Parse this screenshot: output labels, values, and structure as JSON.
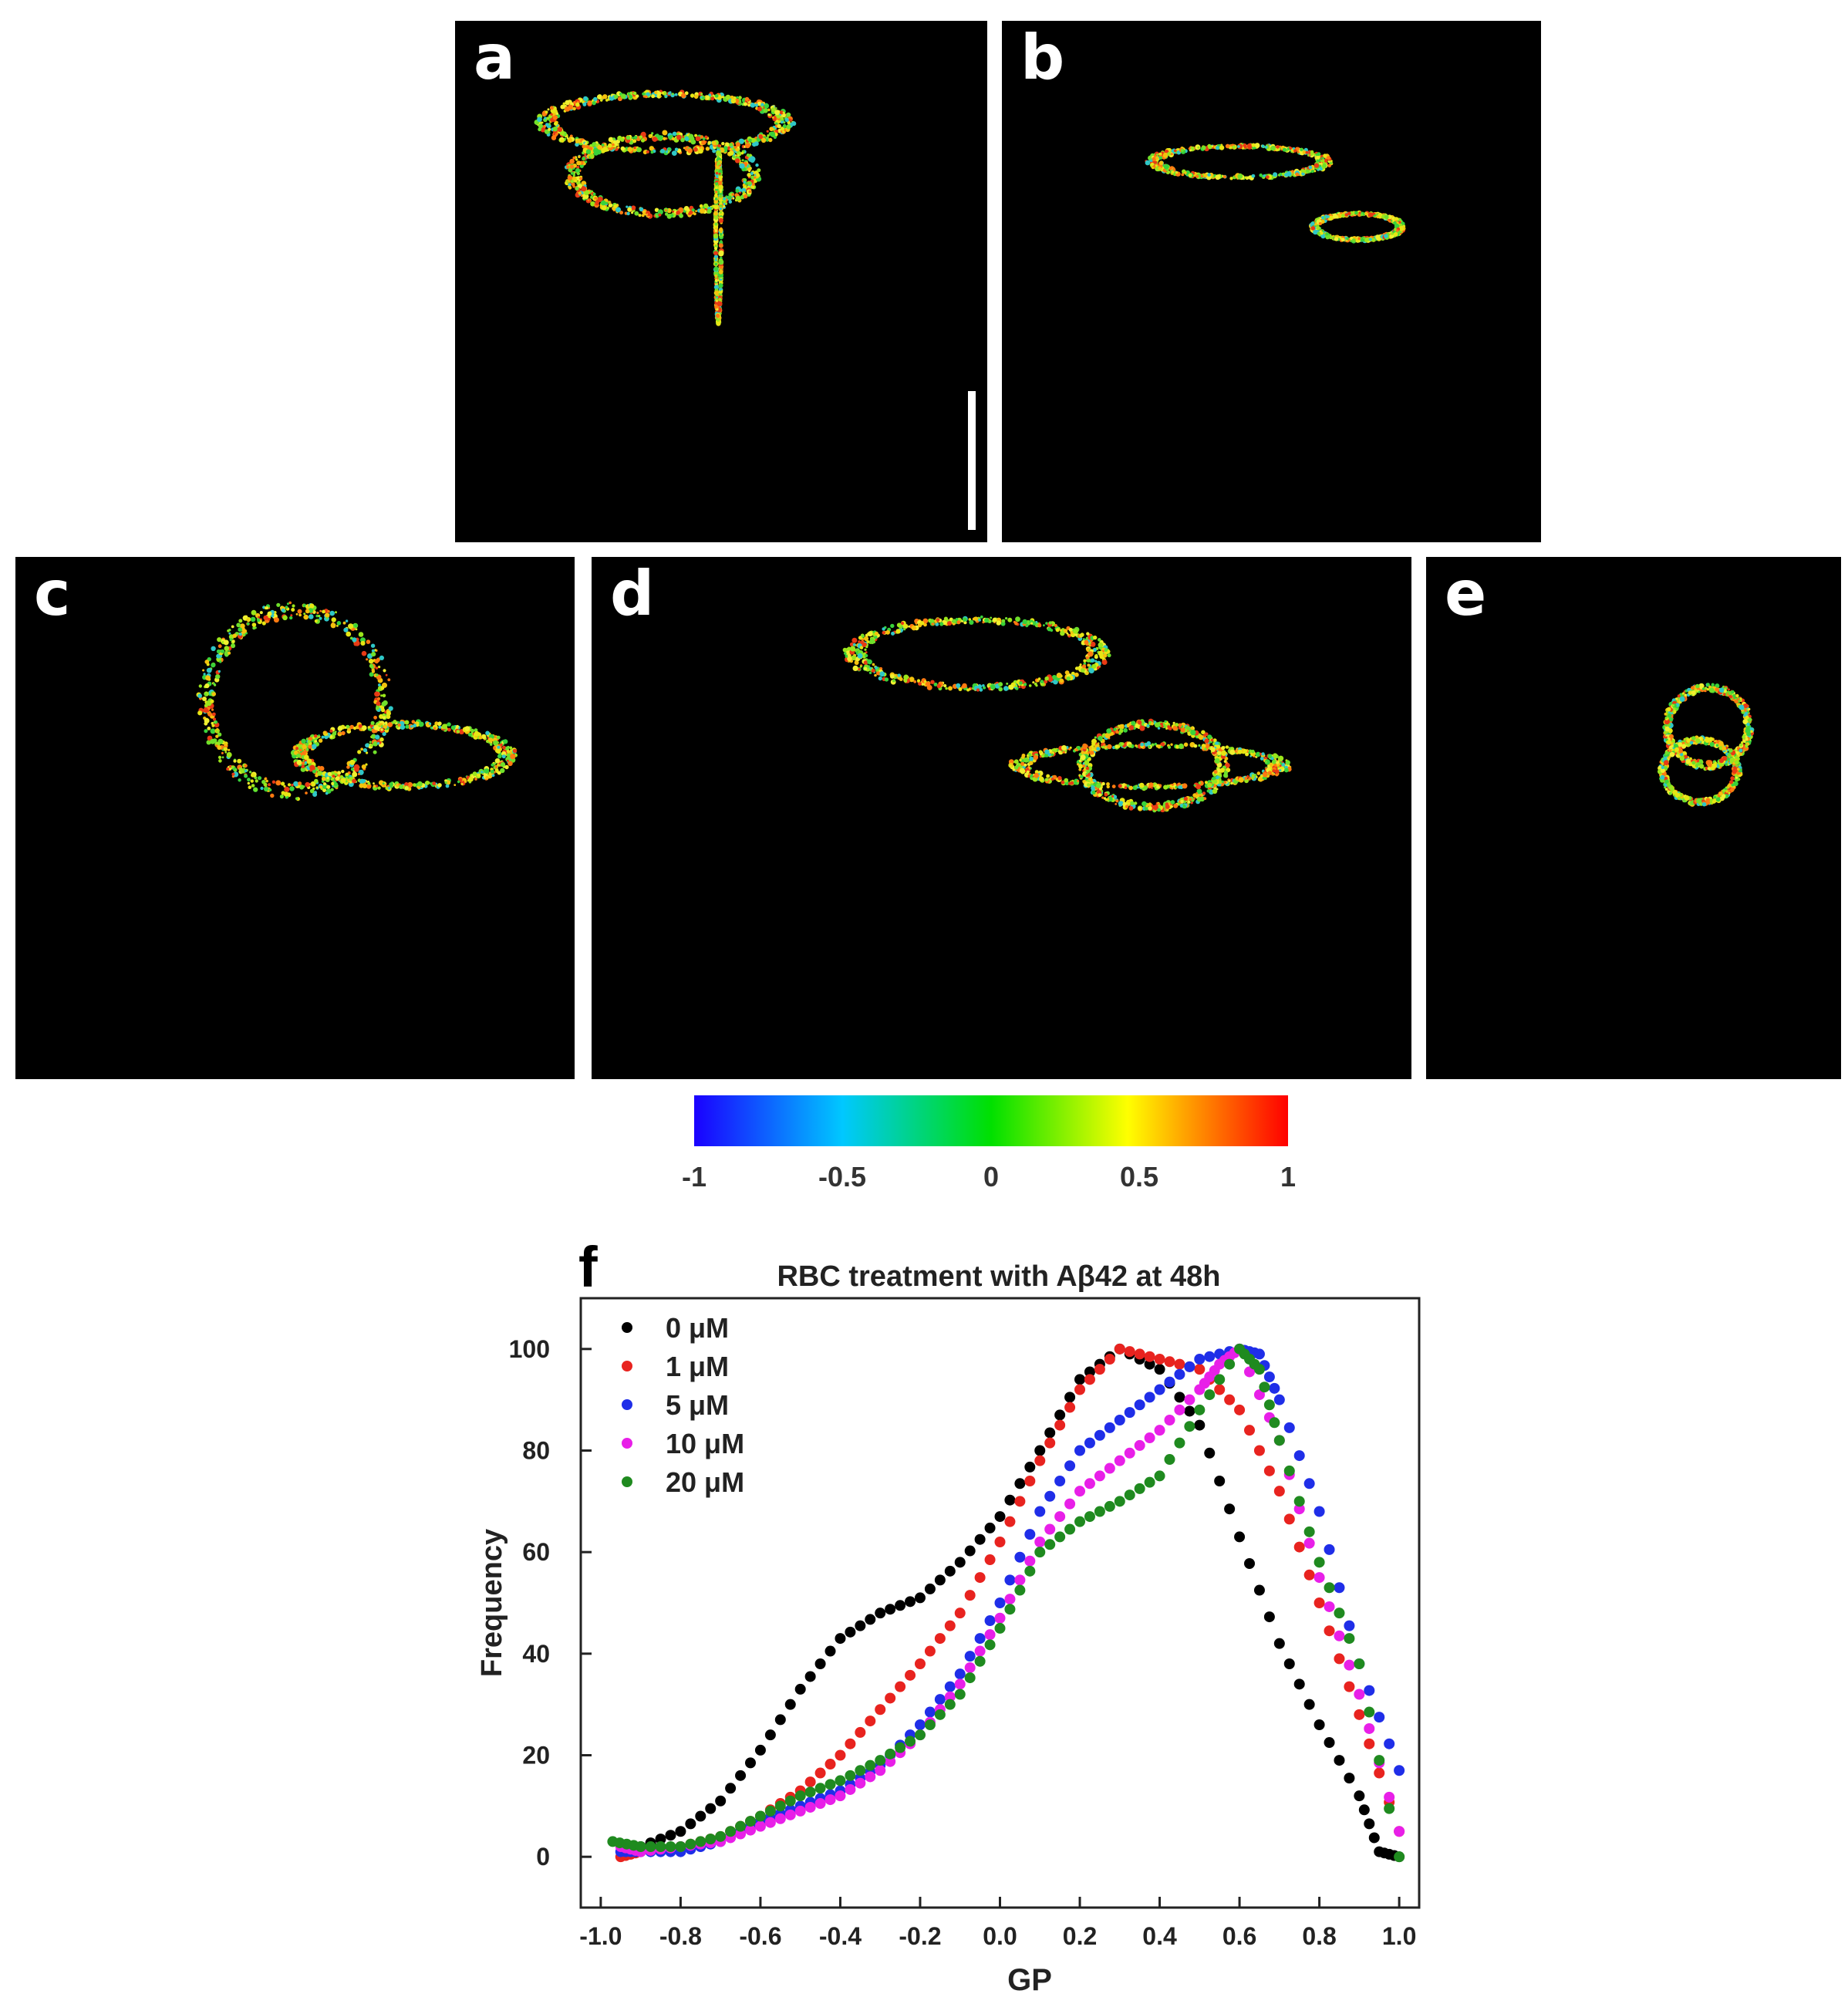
{
  "panels": [
    {
      "id": "a",
      "label": "a"
    },
    {
      "id": "b",
      "label": "b"
    },
    {
      "id": "c",
      "label": "c"
    },
    {
      "id": "d",
      "label": "d"
    },
    {
      "id": "e",
      "label": "e"
    }
  ],
  "colorbar": {
    "ticks": [
      "-1",
      "-0.5",
      "0",
      "0.5",
      "1"
    ],
    "range": [
      -1,
      1
    ],
    "colors": [
      "#1a00ff",
      "#00c8ff",
      "#00e000",
      "#ffff00",
      "#ff8c00",
      "#ff0000"
    ]
  },
  "chart_data": {
    "type": "scatter",
    "panel_label": "f",
    "title": "RBC treatment with Aβ42 at 48h",
    "xlabel": "GP",
    "ylabel": "Frequency",
    "xlim": [
      -1.05,
      1.05
    ],
    "ylim": [
      -10,
      110
    ],
    "xticks": [
      -1.0,
      -0.8,
      -0.6,
      -0.4,
      -0.2,
      0.0,
      0.2,
      0.4,
      0.6,
      0.8,
      1.0
    ],
    "xtick_labels": [
      "-1.0",
      "-0.8",
      "-0.6",
      "-0.4",
      "-0.2",
      "0.0",
      "0.2",
      "0.4",
      "0.6",
      "0.8",
      "1.0"
    ],
    "yticks": [
      0,
      20,
      40,
      60,
      80,
      100
    ],
    "ytick_labels": [
      "0",
      "20",
      "40",
      "60",
      "80",
      "100"
    ],
    "legend_position": "top-left",
    "series": [
      {
        "name": "0 μM",
        "color": "#000000",
        "x": [
          -0.9,
          -0.8,
          -0.7,
          -0.6,
          -0.5,
          -0.4,
          -0.3,
          -0.2,
          -0.1,
          0.0,
          0.1,
          0.2,
          0.3,
          0.4,
          0.5,
          0.6,
          0.7,
          0.8,
          0.9,
          0.95,
          1.0
        ],
        "y": [
          2,
          5,
          11,
          21,
          33,
          43,
          48,
          51,
          58,
          67,
          80,
          94,
          100,
          96,
          85,
          63,
          42,
          26,
          12,
          1,
          0
        ]
      },
      {
        "name": "1 μM",
        "color": "#e8231f",
        "x": [
          -0.95,
          -0.9,
          -0.8,
          -0.7,
          -0.6,
          -0.5,
          -0.4,
          -0.3,
          -0.2,
          -0.1,
          0.0,
          0.1,
          0.2,
          0.3,
          0.4,
          0.5,
          0.6,
          0.7,
          0.8,
          0.9,
          1.0
        ],
        "y": [
          0,
          1,
          2,
          4,
          8,
          13,
          20,
          29,
          38,
          48,
          62,
          78,
          92,
          100,
          98,
          96,
          88,
          72,
          50,
          28,
          5
        ]
      },
      {
        "name": "5 μM",
        "color": "#1f2ee8",
        "x": [
          -0.95,
          -0.9,
          -0.8,
          -0.7,
          -0.6,
          -0.5,
          -0.4,
          -0.3,
          -0.2,
          -0.1,
          0.0,
          0.1,
          0.2,
          0.3,
          0.4,
          0.5,
          0.6,
          0.65,
          0.7,
          0.8,
          0.9,
          1.0
        ],
        "y": [
          1,
          1,
          1,
          3,
          7,
          10,
          13,
          18,
          26,
          36,
          50,
          68,
          80,
          86,
          92,
          98,
          100,
          99,
          90,
          68,
          38,
          17
        ]
      },
      {
        "name": "10 μM",
        "color": "#e81fe8",
        "x": [
          -0.95,
          -0.9,
          -0.8,
          -0.7,
          -0.6,
          -0.5,
          -0.4,
          -0.3,
          -0.2,
          -0.1,
          0.0,
          0.1,
          0.2,
          0.3,
          0.4,
          0.5,
          0.55,
          0.6,
          0.7,
          0.8,
          0.9,
          1.0
        ],
        "y": [
          2,
          1,
          2,
          3,
          6,
          9,
          12,
          17,
          24,
          34,
          47,
          62,
          72,
          78,
          84,
          92,
          97,
          100,
          82,
          55,
          32,
          5
        ]
      },
      {
        "name": "20 μM",
        "color": "#1f8a1f",
        "x": [
          -0.97,
          -0.9,
          -0.8,
          -0.7,
          -0.6,
          -0.5,
          -0.4,
          -0.3,
          -0.2,
          -0.1,
          0.0,
          0.1,
          0.2,
          0.3,
          0.4,
          0.5,
          0.6,
          0.65,
          0.7,
          0.8,
          0.9,
          1.0
        ],
        "y": [
          3,
          2,
          2,
          4,
          8,
          12,
          15,
          19,
          24,
          32,
          45,
          60,
          66,
          70,
          75,
          88,
          100,
          96,
          82,
          58,
          38,
          0
        ]
      }
    ]
  }
}
